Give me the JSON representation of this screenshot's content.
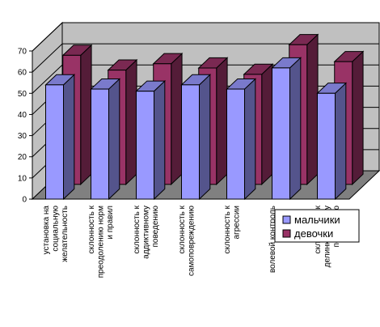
{
  "chart_data": {
    "type": "bar",
    "style": "3d-clustered-column",
    "categories": [
      "установка на социальную желательность",
      "склонность к преодолению норм и правил",
      "склонность к аддиктивному поведению",
      "склонность к самоповреждению",
      "склонность к агрессии",
      "волевой контроль",
      "склонность к делинквентному поведению"
    ],
    "category_label_lines": [
      [
        "установка на",
        "социальную",
        "желательность"
      ],
      [
        "склонность к",
        "преодолению норм",
        "и правил"
      ],
      [
        "склонность к",
        "аддиктивному",
        "поведению"
      ],
      [
        "склонность к",
        "самоповреждению"
      ],
      [
        "склонность к",
        "агрессии"
      ],
      [
        "волевой контроль"
      ],
      [
        "склонность к",
        "делинквентному",
        "поведению"
      ]
    ],
    "series": [
      {
        "name": "мальчики",
        "color": "#9999ff",
        "values": [
          54,
          52,
          51,
          54,
          52,
          62,
          50
        ]
      },
      {
        "name": "девочки",
        "color": "#993366",
        "values": [
          61,
          54,
          57,
          55,
          52,
          66,
          58
        ]
      }
    ],
    "yticks": [
      "0",
      "10",
      "20",
      "30",
      "40",
      "50",
      "60",
      "70"
    ],
    "ylim": [
      0,
      70
    ],
    "grid": true,
    "legend_position": "bottom-right",
    "wall_color": "#c0c0c0",
    "floor_color": "#808080",
    "title": "",
    "xlabel": "",
    "ylabel": ""
  }
}
